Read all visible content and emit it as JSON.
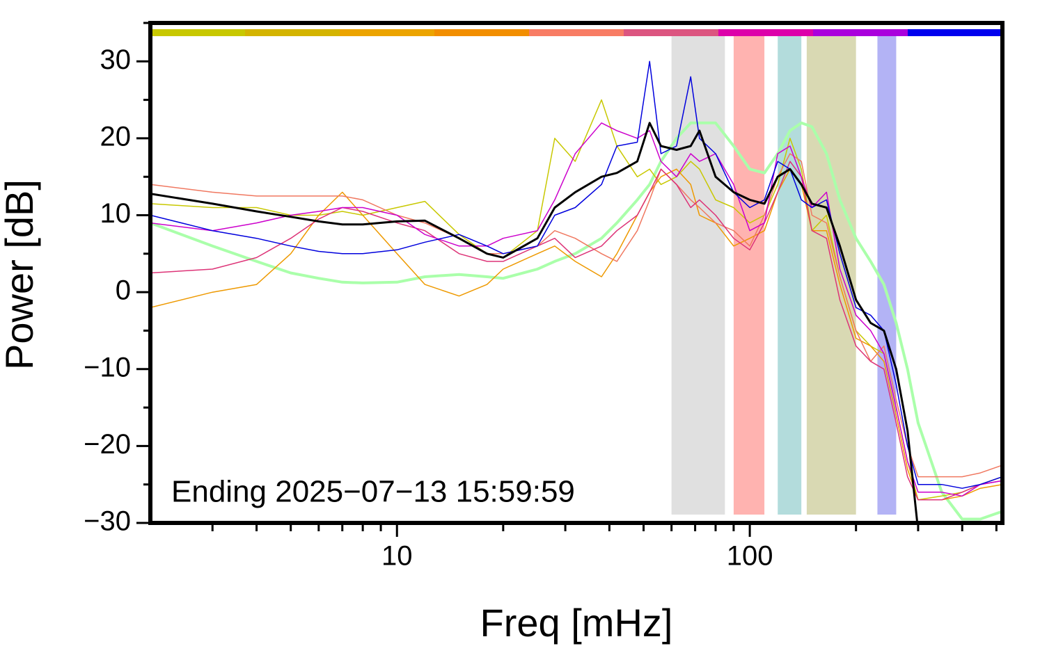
{
  "chart_data": {
    "type": "line",
    "xlabel": "Freq [mHz]",
    "ylabel": "Power [dB]",
    "annotation": "Ending 2025−07−13 15:59:59",
    "xscale": "log",
    "xlim": [
      2,
      520
    ],
    "ylim": [
      -30,
      35
    ],
    "xticks": [
      10,
      100
    ],
    "xminorticks": [
      3,
      4,
      5,
      6,
      7,
      8,
      9,
      20,
      30,
      40,
      50,
      60,
      70,
      80,
      90,
      200,
      300,
      400,
      500
    ],
    "yticks": [
      {
        "value": -30,
        "label": "−30"
      },
      {
        "value": -20,
        "label": "−20"
      },
      {
        "value": -10,
        "label": "−10"
      },
      0,
      10,
      20,
      30
    ],
    "yminorticks": [
      -25,
      -15,
      -5,
      5,
      15,
      25,
      35
    ],
    "color_strip": [
      "#c8c800",
      "#d4b400",
      "#eca400",
      "#f28e00",
      "#f87c64",
      "#dc5580",
      "#dd00aa",
      "#aa00dd",
      "#0000ee"
    ],
    "bands": [
      {
        "x": [
          60,
          85
        ],
        "color": "#e0e0e0"
      },
      {
        "x": [
          90,
          110
        ],
        "color": "#ffb3b0"
      },
      {
        "x": [
          120,
          140
        ],
        "color": "#b3dcdc"
      },
      {
        "x": [
          145,
          200
        ],
        "color": "#d9d9b3"
      },
      {
        "x": [
          230,
          260
        ],
        "color": "#b3b3f5"
      }
    ],
    "x": [
      2,
      3,
      4,
      5,
      6,
      7,
      8,
      10,
      12,
      15,
      18,
      20,
      25,
      28,
      32,
      38,
      42,
      48,
      52,
      56,
      62,
      68,
      72,
      80,
      90,
      100,
      110,
      120,
      130,
      140,
      150,
      165,
      180,
      200,
      220,
      240,
      260,
      280,
      300,
      350,
      400,
      450,
      520
    ],
    "series": [
      {
        "color": "#aaffaa",
        "linewidth": 4,
        "values": [
          9,
          6,
          4,
          2.5,
          1.8,
          1.3,
          1.2,
          1.3,
          2,
          2.3,
          2,
          1.8,
          3,
          4,
          5,
          7,
          9,
          12,
          14,
          17,
          20,
          22,
          22,
          22,
          19,
          16,
          15.5,
          18,
          21,
          22,
          21.5,
          18,
          12,
          7,
          4,
          1,
          -4,
          -10,
          -17,
          -26,
          -29.5,
          -29.5,
          -28.5
        ]
      },
      {
        "color": "#c8c800",
        "linewidth": 1.5,
        "values": [
          11.5,
          11,
          11,
          10,
          10,
          10.5,
          10,
          11,
          11.8,
          7.5,
          5,
          4.5,
          8,
          20,
          17,
          25,
          19,
          15,
          16,
          14,
          15,
          17,
          16,
          12,
          11,
          9,
          10,
          14,
          20,
          16,
          8,
          10,
          2,
          -5,
          -7,
          -8,
          -15,
          -22,
          -27,
          -26.5,
          -26,
          -25,
          -24
        ]
      },
      {
        "color": "#ee9900",
        "linewidth": 1.5,
        "values": [
          -2,
          0,
          1,
          5,
          10,
          13,
          10,
          5,
          1,
          -0.5,
          1,
          3,
          5,
          6,
          4,
          2,
          5,
          10,
          13,
          15,
          16,
          14,
          10,
          9,
          6,
          7,
          8,
          13,
          16,
          14,
          8,
          8,
          1,
          -6,
          -7,
          -9,
          -16,
          -23,
          -27,
          -27,
          -26.5,
          -25.5,
          -25
        ]
      },
      {
        "color": "#f07860",
        "linewidth": 1.5,
        "values": [
          14,
          13,
          12.5,
          12.5,
          12.5,
          12.5,
          12,
          10,
          9,
          7,
          5,
          5,
          6,
          8,
          7,
          5,
          4,
          8,
          12,
          16,
          14,
          12,
          11,
          9,
          8,
          6,
          10,
          15,
          18,
          17,
          10,
          9,
          2,
          -5,
          -9,
          -7,
          -14,
          -20,
          -24,
          -24,
          -24,
          -23.5,
          -22.5
        ]
      },
      {
        "color": "#dd3377",
        "linewidth": 1.5,
        "values": [
          2.5,
          3,
          4.5,
          7,
          9.5,
          11,
          10.5,
          9,
          8,
          5,
          4,
          4,
          6,
          7,
          4.5,
          6,
          8,
          10,
          13,
          16,
          14,
          11,
          12,
          10,
          7,
          5.5,
          9,
          13,
          17,
          15,
          8,
          7,
          -1,
          -7,
          -9,
          -10,
          -17,
          -24,
          -27,
          -27,
          -26,
          -25,
          -24.5
        ]
      },
      {
        "color": "#cc00cc",
        "linewidth": 1.5,
        "values": [
          9,
          8,
          9,
          10,
          10.5,
          11,
          11,
          10,
          7.5,
          6,
          6,
          7,
          8,
          12,
          18,
          22,
          21,
          20,
          21,
          17,
          15,
          18,
          17,
          18,
          14,
          8,
          9,
          18,
          19,
          15,
          11,
          13,
          3,
          -3,
          -5,
          -8,
          -15,
          -22,
          -26,
          -26,
          -26.5,
          -25,
          -24.5
        ]
      },
      {
        "color": "#0000dd",
        "linewidth": 1.5,
        "values": [
          10,
          8,
          7,
          6,
          5.3,
          5,
          5,
          5.5,
          6.5,
          7.5,
          6,
          5,
          6,
          10,
          11,
          14,
          19,
          19.5,
          30,
          18,
          19,
          28,
          20,
          18,
          13,
          11,
          12,
          17,
          16,
          12,
          11,
          12,
          5,
          -2,
          -3,
          -5,
          -12,
          -20,
          -25,
          -25,
          -25.5,
          -25,
          -24
        ]
      },
      {
        "color": "#000000",
        "linewidth": 3,
        "values": [
          12.8,
          11.5,
          10.5,
          9.8,
          9.2,
          8.8,
          8.8,
          9.2,
          9.3,
          7,
          5,
          4.5,
          7,
          11,
          13,
          15,
          15.5,
          17,
          22,
          19,
          18.5,
          19,
          21,
          15,
          13,
          12,
          11.5,
          15,
          16,
          14,
          11.5,
          11,
          6,
          -1,
          -4,
          -5,
          -10,
          -18,
          -31,
          null,
          null,
          null,
          null
        ]
      }
    ]
  }
}
